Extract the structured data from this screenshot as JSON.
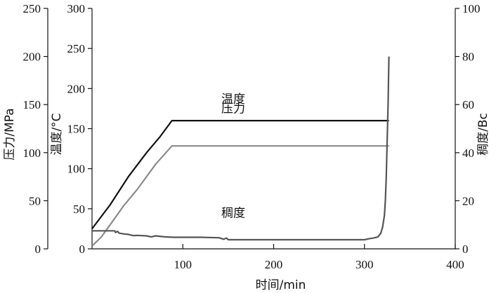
{
  "chart_data": {
    "type": "line",
    "title": "",
    "xlabel": "时间/min",
    "xlim": [
      0,
      400
    ],
    "x_ticks": [
      100,
      200,
      300,
      400
    ],
    "grid": false,
    "legend": "none",
    "axes": {
      "y_left_outer": {
        "label": "压力/MPa",
        "range": [
          0,
          250
        ],
        "ticks": [
          0,
          50,
          100,
          150,
          200,
          250
        ]
      },
      "y_left_inner": {
        "label": "温度/°C",
        "range": [
          0,
          300
        ],
        "ticks": [
          0,
          50,
          100,
          150,
          200,
          250,
          300
        ]
      },
      "y_right": {
        "label": "稠度/Bc",
        "range": [
          0,
          100
        ],
        "ticks": [
          0,
          20,
          40,
          60,
          80,
          100
        ]
      }
    },
    "series": [
      {
        "name": "温度",
        "axis": "y_left_inner",
        "color": "#111111",
        "points": [
          [
            0,
            25
          ],
          [
            20,
            55
          ],
          [
            40,
            90
          ],
          [
            60,
            120
          ],
          [
            75,
            140
          ],
          [
            88,
            160
          ],
          [
            100,
            160
          ],
          [
            200,
            160
          ],
          [
            300,
            160
          ],
          [
            327,
            160
          ]
        ]
      },
      {
        "name": "压力",
        "axis": "y_left_outer",
        "color": "#8a8a8a",
        "points": [
          [
            0,
            3
          ],
          [
            10,
            12
          ],
          [
            20,
            25
          ],
          [
            35,
            45
          ],
          [
            50,
            62
          ],
          [
            70,
            88
          ],
          [
            88,
            107
          ],
          [
            100,
            107
          ],
          [
            200,
            107
          ],
          [
            300,
            107
          ],
          [
            327,
            107
          ]
        ]
      },
      {
        "name": "稠度",
        "axis": "y_right",
        "color": "#555555",
        "points": [
          [
            0,
            7.5
          ],
          [
            25,
            7.5
          ],
          [
            26,
            6.8
          ],
          [
            28,
            7.3
          ],
          [
            30,
            6.5
          ],
          [
            35,
            6.2
          ],
          [
            40,
            6.0
          ],
          [
            45,
            5.5
          ],
          [
            50,
            5.6
          ],
          [
            60,
            5.4
          ],
          [
            65,
            5.0
          ],
          [
            70,
            5.4
          ],
          [
            80,
            5.0
          ],
          [
            90,
            4.8
          ],
          [
            100,
            4.8
          ],
          [
            120,
            4.8
          ],
          [
            140,
            4.6
          ],
          [
            145,
            4.0
          ],
          [
            148,
            4.5
          ],
          [
            150,
            3.8
          ],
          [
            155,
            3.8
          ],
          [
            200,
            3.8
          ],
          [
            250,
            3.8
          ],
          [
            300,
            3.8
          ],
          [
            305,
            4.2
          ],
          [
            310,
            4.5
          ],
          [
            315,
            5.0
          ],
          [
            318,
            6.5
          ],
          [
            320,
            9.0
          ],
          [
            322,
            14.0
          ],
          [
            323,
            20.0
          ],
          [
            324,
            30.0
          ],
          [
            325,
            45.0
          ],
          [
            326,
            60.0
          ],
          [
            327,
            80.0
          ]
        ]
      }
    ],
    "annotations": [
      {
        "text": "温度",
        "x": 130,
        "y": 175,
        "axis": "y_left_inner"
      },
      {
        "text": "压力",
        "x": 130,
        "y": 136,
        "axis": "y_left_outer"
      },
      {
        "text": "稠度",
        "x": 130,
        "y": 11,
        "axis": "y_right"
      }
    ]
  }
}
